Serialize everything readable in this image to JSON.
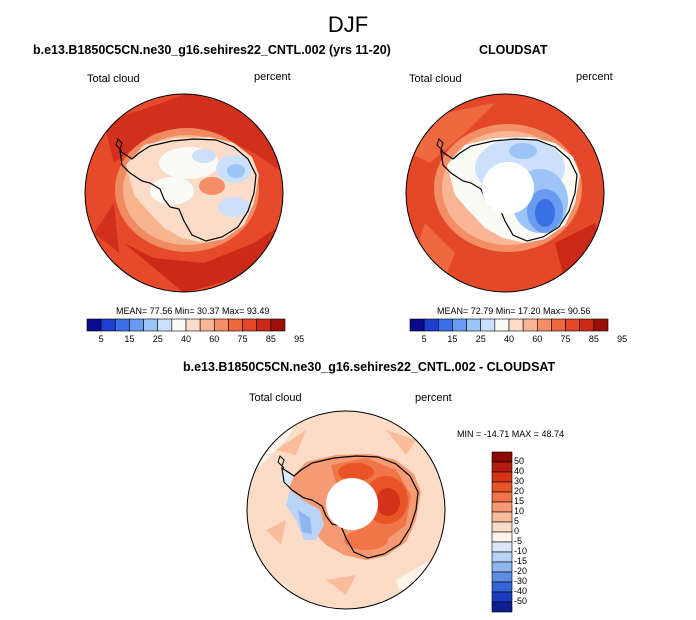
{
  "title": "DJF",
  "panels": [
    {
      "title": "b.e13.B1850C5CN.ne30_g16.sehires22_CNTL.002 (yrs 11-20)",
      "left_label": "Total cloud",
      "right_label": "percent",
      "stats": "MEAN=  77.56  Min=  30.37  Max=  93.49",
      "pole_hole": false
    },
    {
      "title": "CLOUDSAT",
      "left_label": "Total cloud",
      "right_label": "percent",
      "stats": "MEAN=  72.79  Min=  17.20  Max=  90.56",
      "pole_hole": true
    }
  ],
  "diff_panel": {
    "title": "b.e13.B1850C5CN.ne30_g16.sehires22_CNTL.002 - CLOUDSAT",
    "left_label": "Total cloud",
    "right_label": "percent",
    "stats": "MIN = -14.71  MAX =  48.74"
  },
  "colorbar_labels": [
    "5",
    "15",
    "25",
    "40",
    "60",
    "75",
    "85",
    "95"
  ],
  "colorbar_colors": [
    "#0a0a8c",
    "#1c3fd0",
    "#3b6fe6",
    "#6a9bf2",
    "#9cc4f7",
    "#cde0fb",
    "#fbfbf6",
    "#fbdcc8",
    "#f8b694",
    "#f48e66",
    "#ee6840",
    "#e34828",
    "#cc2818",
    "#9a1008"
  ],
  "diff_labels": [
    "50",
    "40",
    "30",
    "20",
    "15",
    "10",
    "5",
    "0",
    "-5",
    "-10",
    "-15",
    "-20",
    "-30",
    "-40",
    "-50"
  ],
  "diff_colors": [
    "#8c0a06",
    "#b51d10",
    "#d33418",
    "#e85426",
    "#f0764a",
    "#f59a72",
    "#f9bd9c",
    "#fcdcc6",
    "#fdf4ea",
    "#dbe8fb",
    "#b9d3f6",
    "#8fb5ef",
    "#5e8de6",
    "#3563d8",
    "#1a3cbd",
    "#0b1f8e"
  ]
}
